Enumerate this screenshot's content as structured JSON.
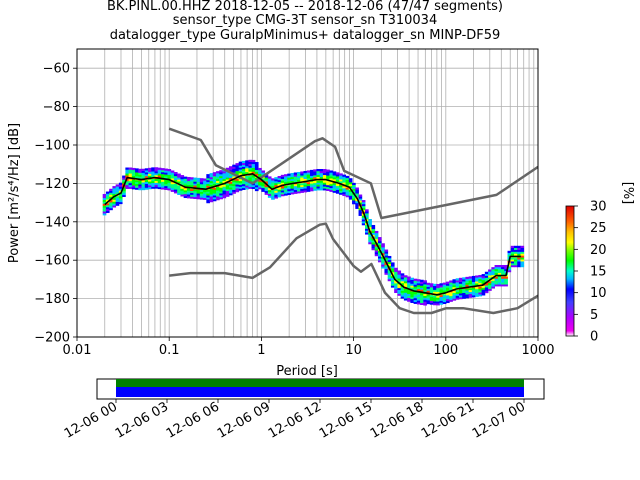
{
  "title_lines": [
    "BK.PINL.00.HHZ   2018-12-05 -- 2018-12-06  (47/47 segments)",
    "sensor_type CMG-3T sensor_sn T310034",
    "datalogger_type GuralpMinimus+ datalogger_sn MINP-DF59"
  ],
  "chart_data": [
    {
      "type": "heatmap",
      "title": "BK.PINL.00.HHZ   2018-12-05 -- 2018-12-06  (47/47 segments)",
      "subtitle": "sensor_type CMG-3T sensor_sn T310034 / datalogger_type GuralpMinimus+ datalogger_sn MINP-DF59",
      "xlabel": "Period [s]",
      "ylabel": "Power [m²/s⁴/Hz] [dB]",
      "xscale": "log",
      "xlim": [
        0.01,
        1000
      ],
      "ylim": [
        -200,
        -50
      ],
      "x_ticks": [
        "0.01",
        "0.1",
        "1",
        "10",
        "100",
        "1000"
      ],
      "y_ticks": [
        "−200",
        "−180",
        "−160",
        "−140",
        "−120",
        "−100",
        "−80",
        "−60"
      ],
      "grid": true,
      "colorbar": {
        "label": "[%]",
        "ticks": [
          "0",
          "5",
          "10",
          "15",
          "20",
          "25",
          "30"
        ],
        "range": [
          0,
          30
        ]
      },
      "series": [
        {
          "style": "black line",
          "x": [
            0.02,
            0.025,
            0.03,
            0.035,
            0.05,
            0.07,
            0.1,
            0.15,
            0.25,
            0.4,
            0.6,
            0.8,
            1.0,
            1.3,
            1.7,
            2.2,
            3.0,
            4.0,
            5.0,
            7.0,
            9.0,
            11.0,
            13.0,
            15.0,
            18.0,
            22.0,
            28.0,
            35.0,
            45.0,
            60.0,
            80.0,
            100.0,
            130.0,
            180.0,
            250.0,
            350.0,
            450.0,
            500.0,
            650.0
          ],
          "y": [
            -131,
            -127,
            -125,
            -117,
            -118,
            -117,
            -118,
            -122,
            -123,
            -120,
            -116,
            -115,
            -118,
            -123,
            -121,
            -120,
            -119,
            -118,
            -118,
            -120,
            -122,
            -128,
            -136,
            -145,
            -152,
            -160,
            -170,
            -174,
            -176,
            -177,
            -178,
            -177,
            -175,
            -174,
            -173,
            -168,
            -168,
            -158,
            -158
          ]
        },
        {
          "style": "gray model line (high)",
          "x": [
            0.1,
            0.22,
            0.32,
            0.8,
            3.8,
            4.6,
            6.3,
            7.9,
            15.4,
            20.0,
            354.8,
            1000.0
          ],
          "y": [
            -91.5,
            -97.4,
            -110.5,
            -120.0,
            -98.0,
            -96.5,
            -101.0,
            -113.5,
            -120.0,
            -138.0,
            -126.0,
            -111.4
          ]
        },
        {
          "style": "gray model line (low)",
          "x": [
            0.1,
            0.17,
            0.4,
            0.8,
            1.24,
            2.4,
            4.3,
            5.0,
            6.0,
            10.0,
            12.0,
            15.6,
            21.9,
            31.6,
            45.0,
            70.0,
            101.0,
            154.0,
            328.0,
            600.0,
            1000.0
          ],
          "y": [
            -168.0,
            -166.7,
            -166.7,
            -169.2,
            -163.7,
            -148.6,
            -141.5,
            -141.0,
            -149.0,
            -163.0,
            -166.0,
            -162.0,
            -177.0,
            -185.0,
            -187.5,
            -187.5,
            -185.0,
            -185.0,
            -187.5,
            -185.0,
            -178.5
          ]
        }
      ],
      "time_axis": {
        "ticks": [
          "12-06 00",
          "12-06 03",
          "12-06 06",
          "12-06 09",
          "12-06 12",
          "12-06 15",
          "12-06 18",
          "12-06 21",
          "12-07 00"
        ],
        "coverage_colors": [
          "#008000",
          "#0000ff"
        ]
      }
    }
  ]
}
